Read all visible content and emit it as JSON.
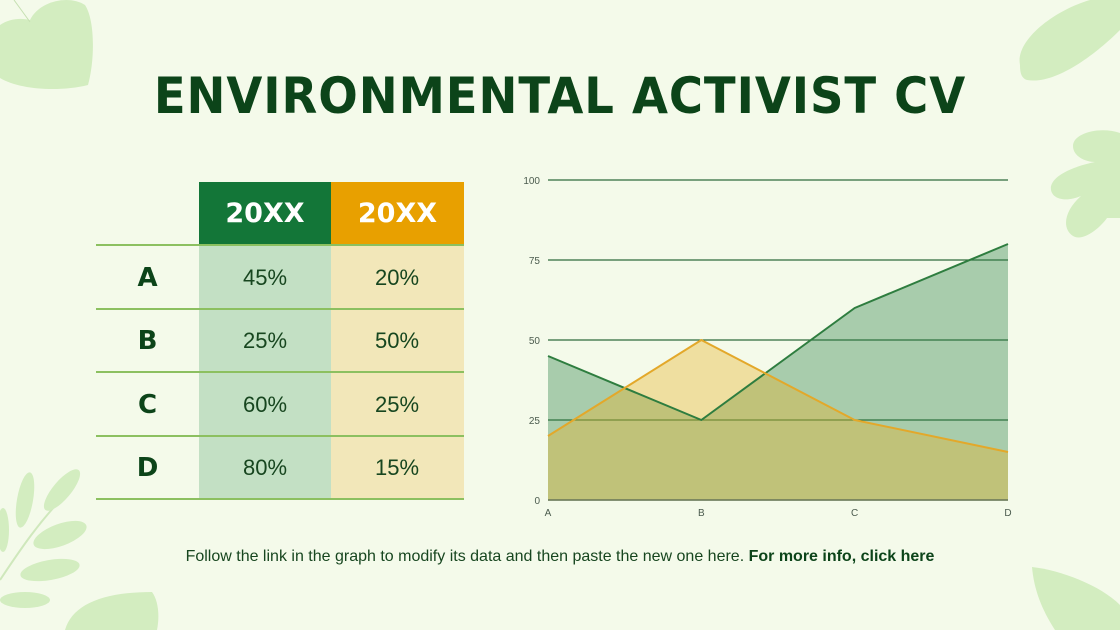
{
  "title": "ENVIRONMENTAL ACTIVIST CV",
  "table": {
    "headers": [
      "20XX",
      "20XX"
    ],
    "header_colors": [
      "#137638",
      "#e8a000"
    ],
    "rows": [
      {
        "label": "A",
        "values": [
          "45%",
          "20%"
        ]
      },
      {
        "label": "B",
        "values": [
          "25%",
          "50%"
        ]
      },
      {
        "label": "C",
        "values": [
          "60%",
          "25%"
        ]
      },
      {
        "label": "D",
        "values": [
          "80%",
          "15%"
        ]
      }
    ]
  },
  "footer": {
    "text": "Follow the link in the graph to modify its data and then paste the new one here.",
    "link": "For more info, click here"
  },
  "chart_data": {
    "type": "area",
    "categories": [
      "A",
      "B",
      "C",
      "D"
    ],
    "series": [
      {
        "name": "20XX (green)",
        "values": [
          45,
          25,
          60,
          80
        ],
        "color": "#2e7d3f"
      },
      {
        "name": "20XX (yellow)",
        "values": [
          20,
          50,
          25,
          15
        ],
        "color": "#e3a82a"
      }
    ],
    "title": "",
    "xlabel": "",
    "ylabel": "",
    "ylim": [
      0,
      100
    ],
    "yticks": [
      0,
      25,
      50,
      75,
      100
    ],
    "grid": true,
    "legend": "none"
  }
}
